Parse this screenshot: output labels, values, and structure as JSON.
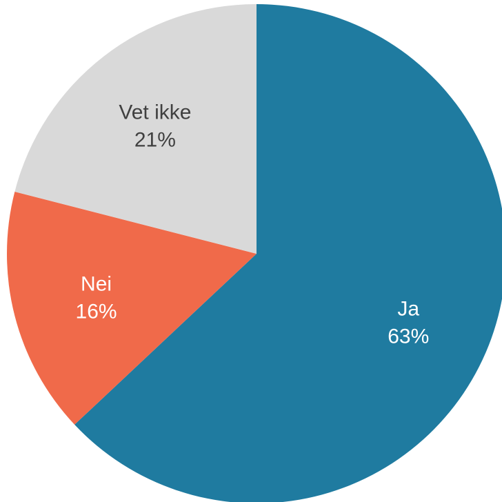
{
  "chart_data": {
    "type": "pie",
    "start": "12 o'clock",
    "direction": "clockwise",
    "slices": [
      {
        "label": "Ja",
        "value": 63,
        "value_label": "63%",
        "color": "#1f7ba0",
        "text_color": "#ffffff"
      },
      {
        "label": "Nei",
        "value": 16,
        "value_label": "16%",
        "color": "#f06a4a",
        "text_color": "#ffffff"
      },
      {
        "label": "Vet ikke",
        "value": 21,
        "value_label": "21%",
        "color": "#d9d9d9",
        "text_color": "#404040"
      }
    ]
  }
}
